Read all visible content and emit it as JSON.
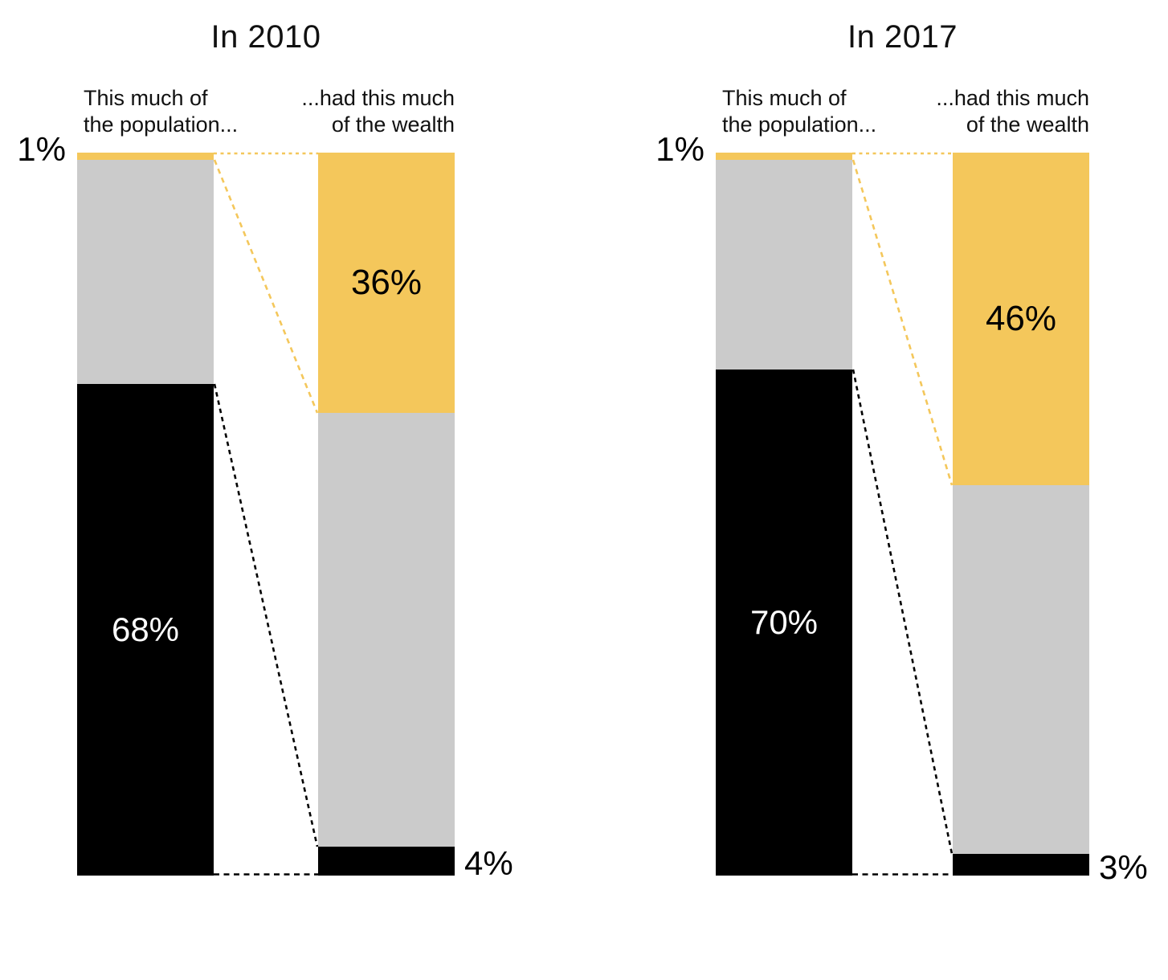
{
  "page": {
    "background_color": "#ffffff",
    "text_color": "#111111"
  },
  "colors": {
    "top1": "#F4C75B",
    "middle": "#CBCBCB",
    "bottom": "#000000"
  },
  "chart_data": [
    {
      "type": "bar",
      "title": "In 2010",
      "categories": [
        "population",
        "wealth"
      ],
      "column_headers": {
        "population_line1": "This much of",
        "population_line2": "the population...",
        "wealth_line1": "...had this much",
        "wealth_line2": "of the wealth"
      },
      "series": [
        {
          "name": "top1",
          "color": "#F4C75B",
          "values": [
            1,
            36
          ]
        },
        {
          "name": "middle",
          "color": "#CBCBCB",
          "values": [
            31,
            60
          ]
        },
        {
          "name": "bottom",
          "color": "#000000",
          "values": [
            68,
            4
          ]
        }
      ],
      "ylim": [
        0,
        100
      ],
      "unit": "%",
      "visible_labels": {
        "population_top1": "1%",
        "wealth_top1": "36%",
        "population_bottom": "68%",
        "wealth_bottom": "4%"
      }
    },
    {
      "type": "bar",
      "title": "In 2017",
      "categories": [
        "population",
        "wealth"
      ],
      "column_headers": {
        "population_line1": "This much of",
        "population_line2": "the population...",
        "wealth_line1": "...had this much",
        "wealth_line2": "of the wealth"
      },
      "series": [
        {
          "name": "top1",
          "color": "#F4C75B",
          "values": [
            1,
            46
          ]
        },
        {
          "name": "middle",
          "color": "#CBCBCB",
          "values": [
            29,
            51
          ]
        },
        {
          "name": "bottom",
          "color": "#000000",
          "values": [
            70,
            3
          ]
        }
      ],
      "ylim": [
        0,
        100
      ],
      "unit": "%",
      "visible_labels": {
        "population_top1": "1%",
        "wealth_top1": "46%",
        "population_bottom": "70%",
        "wealth_bottom": "3%"
      }
    }
  ]
}
